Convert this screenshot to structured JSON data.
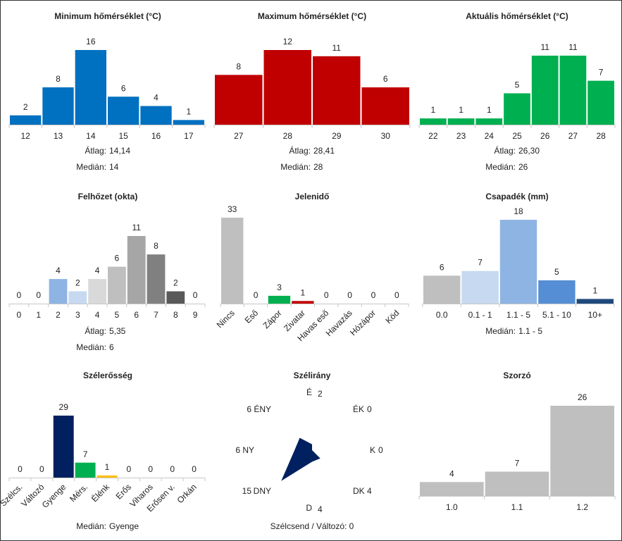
{
  "charts": [
    {
      "id": "min",
      "title": "Minimum hőmérséklet (°C)",
      "type": "bar",
      "categories": [
        "12",
        "13",
        "14",
        "15",
        "16",
        "17"
      ],
      "values": [
        2,
        8,
        16,
        6,
        4,
        1
      ],
      "colors": [
        "#0070C0"
      ],
      "stats": [
        [
          "Átlag:",
          "14,14"
        ],
        [
          "Medián:",
          "14"
        ]
      ]
    },
    {
      "id": "max",
      "title": "Maximum hőmérséklet (°C)",
      "type": "bar",
      "categories": [
        "27",
        "28",
        "29",
        "30"
      ],
      "values": [
        8,
        12,
        11,
        6
      ],
      "colors": [
        "#C00000"
      ],
      "stats": [
        [
          "Átlag:",
          "28,41"
        ],
        [
          "Medián:",
          "28"
        ]
      ]
    },
    {
      "id": "cur",
      "title": "Aktuális hőmérséklet (°C)",
      "type": "bar",
      "categories": [
        "22",
        "23",
        "24",
        "25",
        "26",
        "27",
        "28"
      ],
      "values": [
        1,
        1,
        1,
        5,
        11,
        11,
        7
      ],
      "colors": [
        "#00B050"
      ],
      "stats": [
        [
          "Átlag:",
          "26,30"
        ],
        [
          "Medián:",
          "26"
        ]
      ]
    },
    {
      "id": "cloud",
      "title": "Felhőzet (okta)",
      "type": "bar",
      "categories": [
        "0",
        "1",
        "2",
        "3",
        "4",
        "5",
        "6",
        "7",
        "8",
        "9"
      ],
      "values": [
        0,
        0,
        4,
        2,
        4,
        6,
        11,
        8,
        2,
        0
      ],
      "colors": [
        "#8EB4E3",
        "#8EB4E3",
        "#8EB4E3",
        "#C6D9F0",
        "#D9D9D9",
        "#BFBFBF",
        "#A6A6A6",
        "#808080",
        "#595959",
        "#595959"
      ],
      "stats": [
        [
          "Átlag:",
          "5,35"
        ],
        [
          "Medián:",
          "6"
        ]
      ]
    },
    {
      "id": "wx",
      "title": "Jelenidő",
      "type": "bar",
      "categories": [
        "Nincs",
        "Eső",
        "Zápor",
        "Zivatar",
        "Havas eső",
        "Havazás",
        "Hózápor",
        "Köd"
      ],
      "values": [
        33,
        0,
        3,
        1,
        0,
        0,
        0,
        0
      ],
      "colors": [
        "#BFBFBF",
        "#BFBFBF",
        "#00B050",
        "#C00000",
        "#BFBFBF",
        "#BFBFBF",
        "#BFBFBF",
        "#BFBFBF"
      ],
      "stats": []
    },
    {
      "id": "precip",
      "title": "Csapadék (mm)",
      "type": "bar",
      "categories": [
        "0.0",
        "0.1 - 1",
        "1.1 - 5",
        "5.1 - 10",
        "10+"
      ],
      "values": [
        6,
        7,
        18,
        5,
        1
      ],
      "colors": [
        "#BFBFBF",
        "#C6D9F0",
        "#8EB4E3",
        "#558ED5",
        "#1F497D"
      ],
      "stats": [
        [
          "Medián:",
          "1.1 - 5"
        ]
      ]
    },
    {
      "id": "wspd",
      "title": "Szélerősség",
      "type": "bar",
      "categories": [
        "Szélcs.",
        "Változó",
        "Gyenge",
        "Mérs.",
        "Élénk",
        "Erős",
        "Viharos",
        "Erősen v.",
        "Orkán"
      ],
      "values": [
        0,
        0,
        29,
        7,
        1,
        0,
        0,
        0,
        0
      ],
      "colors": [
        "#002060",
        "#002060",
        "#002060",
        "#00B050",
        "#FFC000",
        "#002060",
        "#002060",
        "#002060",
        "#002060"
      ],
      "stats": [
        [
          "Medián:",
          "Gyenge"
        ]
      ]
    },
    {
      "id": "mult",
      "title": "Szorzó",
      "type": "bar",
      "categories": [
        "1.0",
        "1.1",
        "1.2"
      ],
      "values": [
        4,
        7,
        26
      ],
      "colors": [
        "#BFBFBF"
      ],
      "stats": []
    }
  ],
  "wind_rose": {
    "title": "Szélirány",
    "type": "radar",
    "directions": [
      "É",
      "ÉK",
      "K",
      "DK",
      "D",
      "DNY",
      "NY",
      "ÉNY"
    ],
    "values": [
      2,
      0,
      0,
      4,
      4,
      15,
      6,
      6
    ],
    "color": "#002060",
    "footer": "Szélcsend / Változó: 0"
  },
  "chart_data": [
    {
      "type": "bar",
      "title": "Minimum hőmérséklet (°C)",
      "categories": [
        "12",
        "13",
        "14",
        "15",
        "16",
        "17"
      ],
      "values": [
        2,
        8,
        16,
        6,
        4,
        1
      ]
    },
    {
      "type": "bar",
      "title": "Maximum hőmérséklet (°C)",
      "categories": [
        "27",
        "28",
        "29",
        "30"
      ],
      "values": [
        8,
        12,
        11,
        6
      ]
    },
    {
      "type": "bar",
      "title": "Aktuális hőmérséklet (°C)",
      "categories": [
        "22",
        "23",
        "24",
        "25",
        "26",
        "27",
        "28"
      ],
      "values": [
        1,
        1,
        1,
        5,
        11,
        11,
        7
      ]
    },
    {
      "type": "bar",
      "title": "Felhőzet (okta)",
      "categories": [
        "0",
        "1",
        "2",
        "3",
        "4",
        "5",
        "6",
        "7",
        "8",
        "9"
      ],
      "values": [
        0,
        0,
        4,
        2,
        4,
        6,
        11,
        8,
        2,
        0
      ]
    },
    {
      "type": "bar",
      "title": "Jelenidő",
      "categories": [
        "Nincs",
        "Eső",
        "Zápor",
        "Zivatar",
        "Havas eső",
        "Havazás",
        "Hózápor",
        "Köd"
      ],
      "values": [
        33,
        0,
        3,
        1,
        0,
        0,
        0,
        0
      ]
    },
    {
      "type": "bar",
      "title": "Csapadék (mm)",
      "categories": [
        "0.0",
        "0.1 - 1",
        "1.1 - 5",
        "5.1 - 10",
        "10+"
      ],
      "values": [
        6,
        7,
        18,
        5,
        1
      ]
    },
    {
      "type": "bar",
      "title": "Szélerősség",
      "categories": [
        "Szélcs.",
        "Változó",
        "Gyenge",
        "Mérs.",
        "Élénk",
        "Erős",
        "Viharos",
        "Erősen v.",
        "Orkán"
      ],
      "values": [
        0,
        0,
        29,
        7,
        1,
        0,
        0,
        0,
        0
      ]
    },
    {
      "type": "radar",
      "title": "Szélirány",
      "categories": [
        "É",
        "ÉK",
        "K",
        "DK",
        "D",
        "DNY",
        "NY",
        "ÉNY"
      ],
      "values": [
        2,
        0,
        0,
        4,
        4,
        15,
        6,
        6
      ]
    },
    {
      "type": "bar",
      "title": "Szorzó",
      "categories": [
        "1.0",
        "1.1",
        "1.2"
      ],
      "values": [
        4,
        7,
        26
      ]
    }
  ]
}
